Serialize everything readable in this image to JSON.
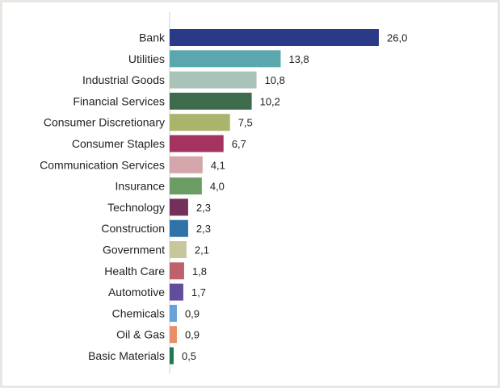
{
  "chart_data": {
    "type": "bar",
    "orientation": "horizontal",
    "categories": [
      "Bank",
      "Utilities",
      "Industrial Goods",
      "Financial Services",
      "Consumer Discretionary",
      "Consumer Staples",
      "Communication Services",
      "Insurance",
      "Technology",
      "Construction",
      "Government",
      "Health Care",
      "Automotive",
      "Chemicals",
      "Oil & Gas",
      "Basic Materials"
    ],
    "values": [
      26.0,
      13.8,
      10.8,
      10.2,
      7.5,
      6.7,
      4.1,
      4.0,
      2.3,
      2.3,
      2.1,
      1.8,
      1.7,
      0.9,
      0.9,
      0.5
    ],
    "value_labels": [
      "26,0",
      "13,8",
      "10,8",
      "10,2",
      "7,5",
      "6,7",
      "4,1",
      "4,0",
      "2,3",
      "2,3",
      "2,1",
      "1,8",
      "1,7",
      "0,9",
      "0,9",
      "0,5"
    ],
    "colors": [
      "#2b3a86",
      "#5aa8ad",
      "#a9c3b9",
      "#3e6b4b",
      "#aab46a",
      "#a4335f",
      "#d4a6ab",
      "#6a9c63",
      "#72305b",
      "#2d72a8",
      "#c7c69d",
      "#c0606c",
      "#634c9b",
      "#66a3d7",
      "#ea8e69",
      "#1e7a4d"
    ],
    "title": "",
    "xlabel": "",
    "ylabel": "",
    "xlim": [
      0,
      26
    ],
    "grid": false,
    "legend": "none"
  }
}
